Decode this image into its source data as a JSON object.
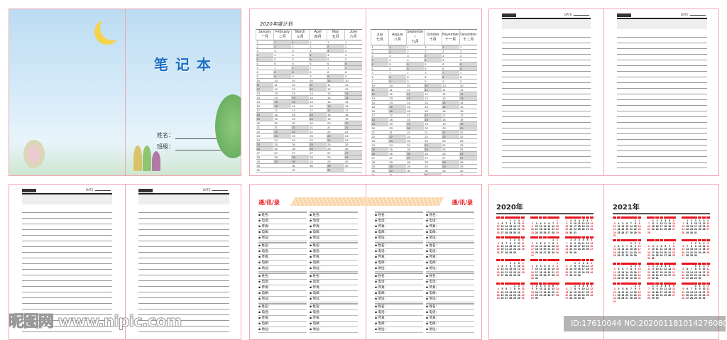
{
  "cover": {
    "title": "笔记本",
    "name_label": "姓名：",
    "class_label": "班级："
  },
  "plan": {
    "title": "2020年度计划",
    "year": 2020,
    "months_h1": [
      [
        "January",
        "一月"
      ],
      [
        "February",
        "二月"
      ],
      [
        "March",
        "三月"
      ],
      [
        "April",
        "四月"
      ],
      [
        "May",
        "五月"
      ],
      [
        "June",
        "六月"
      ]
    ],
    "months_h2": [
      [
        "July",
        "七月"
      ],
      [
        "August",
        "八月"
      ],
      [
        "September",
        "九月"
      ],
      [
        "October",
        "十月"
      ],
      [
        "November",
        "十一月"
      ],
      [
        "December",
        "十二月"
      ]
    ]
  },
  "notes": {
    "logo": "NOTEBOOK",
    "date_label": "DATE :"
  },
  "contacts": {
    "title": "通/讯/录",
    "fields": [
      "姓名：",
      "电话：",
      "传真：",
      "电邮：",
      "地址："
    ]
  },
  "calendars": {
    "years": [
      "2020年",
      "2021年"
    ],
    "weekdays": [
      "日",
      "一",
      "二",
      "三",
      "四",
      "五",
      "六"
    ]
  },
  "watermark": {
    "site": "昵图网 www.nipic.com",
    "id": "ID:17610044 NO:20200118101427608031"
  },
  "colors": {
    "accent": "#e8141c",
    "page_border": "#f3a5b3",
    "title_blue": "#1c6fc4"
  }
}
